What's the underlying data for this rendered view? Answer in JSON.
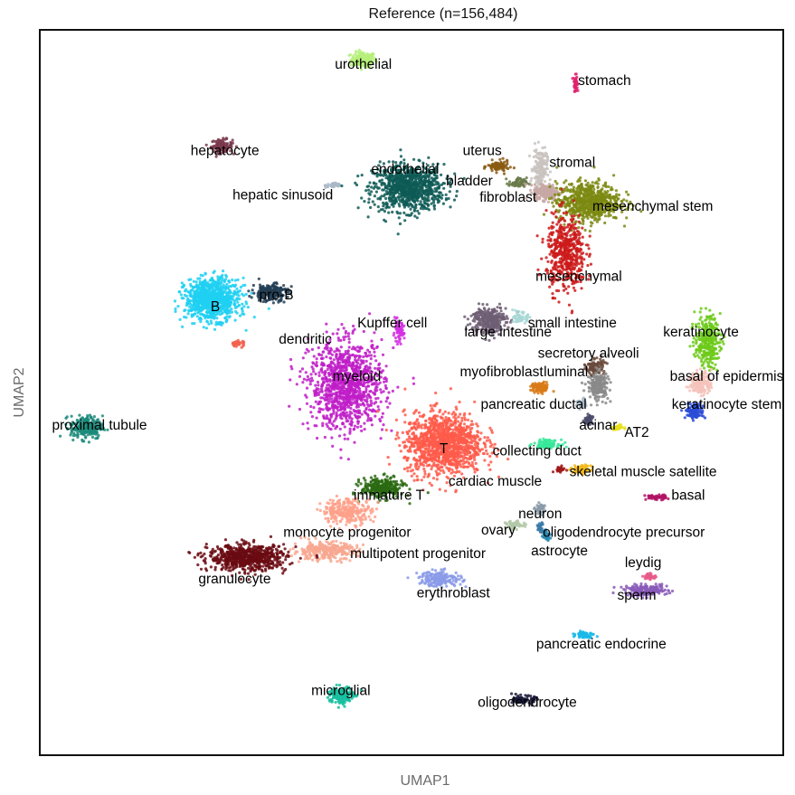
{
  "chart_data": {
    "type": "scatter",
    "title": "Reference (n=156,484)",
    "xlabel": "UMAP1",
    "ylabel": "UMAP2",
    "grid": false,
    "legend": "none",
    "clusters": [
      {
        "name": "urothelial",
        "color": "#b6f07a",
        "center": [
          5.5,
          15.3
        ],
        "spread": [
          0.35,
          0.3
        ],
        "points": 160,
        "label": [
          5.5,
          14.9
        ]
      },
      {
        "name": "stomach",
        "color": "#e0226e",
        "center": [
          12.1,
          14.3
        ],
        "spread": [
          0.05,
          0.3
        ],
        "points": 50,
        "label": [
          13.0,
          14.2
        ]
      },
      {
        "name": "hepatocyte",
        "color": "#7a3a4e",
        "center": [
          1.1,
          11.6
        ],
        "spread": [
          0.3,
          0.25
        ],
        "points": 110,
        "label": [
          1.2,
          11.2
        ]
      },
      {
        "name": "hepatic sinusoid",
        "color": "#a9b8c8",
        "center": [
          4.6,
          9.9
        ],
        "spread": [
          0.25,
          0.1
        ],
        "points": 40,
        "label": [
          3.0,
          9.3
        ]
      },
      {
        "name": "endothelial",
        "color": "#0e5a56",
        "center": [
          6.9,
          9.8
        ],
        "spread": [
          1.0,
          0.9
        ],
        "points": 900,
        "label": [
          6.8,
          10.4
        ]
      },
      {
        "name": "uterus",
        "color": "#8a5a12",
        "center": [
          9.7,
          10.7
        ],
        "spread": [
          0.3,
          0.22
        ],
        "points": 90,
        "label": [
          9.2,
          11.2
        ]
      },
      {
        "name": "stromal",
        "color": "#c9c3bf",
        "center": [
          11.0,
          10.6
        ],
        "spread": [
          0.2,
          0.8
        ],
        "points": 180,
        "label": [
          12.0,
          10.7
        ]
      },
      {
        "name": "bladder",
        "color": "#6a7a4a",
        "center": [
          10.3,
          10.0
        ],
        "spread": [
          0.25,
          0.2
        ],
        "points": 60,
        "label": [
          8.8,
          9.9
        ]
      },
      {
        "name": "fibroblast",
        "color": "#c7a8a5",
        "center": [
          11.2,
          9.6
        ],
        "spread": [
          0.35,
          0.3
        ],
        "points": 220,
        "label": [
          10.0,
          9.2
        ]
      },
      {
        "name": "mesenchymal stem",
        "color": "#7d8a12",
        "center": [
          12.5,
          9.2
        ],
        "spread": [
          0.9,
          0.75
        ],
        "points": 700,
        "label": [
          14.5,
          8.8
        ]
      },
      {
        "name": "mesenchymal",
        "color": "#cc1a1a",
        "center": [
          11.8,
          7.0
        ],
        "spread": [
          0.55,
          1.5
        ],
        "points": 500,
        "label": [
          12.2,
          5.8
        ]
      },
      {
        "name": "B",
        "color": "#1fd0f2",
        "center": [
          0.8,
          5.0
        ],
        "spread": [
          0.75,
          0.8
        ],
        "points": 900,
        "label": [
          0.9,
          4.5
        ]
      },
      {
        "name": "pro-B",
        "color": "#233e55",
        "center": [
          2.6,
          5.3
        ],
        "spread": [
          0.5,
          0.35
        ],
        "points": 200,
        "label": [
          2.8,
          5.0
        ]
      },
      {
        "name": "Kupffer cell",
        "color": "#d530e4",
        "center": [
          6.6,
          3.6
        ],
        "spread": [
          0.15,
          0.4
        ],
        "points": 70,
        "label": [
          6.4,
          3.8
        ]
      },
      {
        "name": "dendritic",
        "color": "#f26350",
        "center": [
          1.6,
          3.1
        ],
        "spread": [
          0.2,
          0.12
        ],
        "points": 40,
        "label": [
          3.7,
          3.1
        ]
      },
      {
        "name": "myeloid",
        "color": "#c01dc8",
        "center": [
          5.0,
          1.3
        ],
        "spread": [
          1.05,
          1.7
        ],
        "points": 1100,
        "label": [
          5.3,
          1.5
        ]
      },
      {
        "name": "large intestine",
        "color": "#6e5e74",
        "center": [
          9.4,
          4.1
        ],
        "spread": [
          0.5,
          0.55
        ],
        "points": 300,
        "label": [
          10.0,
          3.4
        ]
      },
      {
        "name": "small intestine",
        "color": "#a9d7d6",
        "center": [
          10.4,
          4.2
        ],
        "spread": [
          0.2,
          0.2
        ],
        "points": 60,
        "label": [
          12.0,
          3.8
        ]
      },
      {
        "name": "secretory alveoli",
        "color": "#6a4a3c",
        "center": [
          12.7,
          2.1
        ],
        "spread": [
          0.25,
          0.3
        ],
        "points": 110,
        "label": [
          12.5,
          2.5
        ]
      },
      {
        "name": "luminal",
        "color": "#8a8a8a",
        "center": [
          12.8,
          1.3
        ],
        "spread": [
          0.3,
          0.55
        ],
        "points": 200,
        "label": [
          11.8,
          1.7
        ]
      },
      {
        "name": "keratinocyte",
        "color": "#6dca1a",
        "center": [
          16.2,
          3.2
        ],
        "spread": [
          0.35,
          1.0
        ],
        "points": 300,
        "label": [
          16.0,
          3.4
        ]
      },
      {
        "name": "basal of epidermis",
        "color": "#f4c3bb",
        "center": [
          16.0,
          1.4
        ],
        "spread": [
          0.3,
          0.45
        ],
        "points": 160,
        "label": [
          16.8,
          1.5
        ]
      },
      {
        "name": "keratinocyte stem",
        "color": "#2a4bd6",
        "center": [
          15.8,
          0.2
        ],
        "spread": [
          0.25,
          0.3
        ],
        "points": 110,
        "label": [
          16.8,
          0.3
        ]
      },
      {
        "name": "myofibroblast",
        "color": "#d87a16",
        "center": [
          11.0,
          1.2
        ],
        "spread": [
          0.25,
          0.2
        ],
        "points": 90,
        "label": [
          9.8,
          1.7
        ]
      },
      {
        "name": "pancreatic ductal",
        "color": "#a8b8c8",
        "center": [
          12.3,
          0.5
        ],
        "spread": [
          0.15,
          0.2
        ],
        "points": 40,
        "label": [
          10.8,
          0.3
        ]
      },
      {
        "name": "acinar",
        "color": "#4a4c6a",
        "center": [
          12.5,
          -0.2
        ],
        "spread": [
          0.12,
          0.25
        ],
        "points": 40,
        "label": [
          12.8,
          -0.6
        ]
      },
      {
        "name": "AT2",
        "color": "#e8e01a",
        "center": [
          13.4,
          -0.5
        ],
        "spread": [
          0.15,
          0.1
        ],
        "points": 30,
        "label": [
          14.0,
          -0.9
        ]
      },
      {
        "name": "proximal tubule",
        "color": "#1a8a7a",
        "center": [
          -3.1,
          -0.5
        ],
        "spread": [
          0.45,
          0.45
        ],
        "points": 240,
        "label": [
          -2.7,
          -0.6
        ]
      },
      {
        "name": "T",
        "color": "#ff5a4a",
        "center": [
          8.0,
          -1.2
        ],
        "spread": [
          1.1,
          1.2
        ],
        "points": 1200,
        "label": [
          8.0,
          -1.6
        ]
      },
      {
        "name": "collecting duct",
        "color": "#38e89a",
        "center": [
          11.2,
          -1.2
        ],
        "spread": [
          0.35,
          0.15
        ],
        "points": 100,
        "label": [
          10.9,
          -1.7
        ]
      },
      {
        "name": "skeletal muscle satellite",
        "color": "#f2b818",
        "center": [
          12.3,
          -2.3
        ],
        "spread": [
          0.25,
          0.15
        ],
        "points": 80,
        "label": [
          14.2,
          -2.6
        ]
      },
      {
        "name": "cardiac muscle",
        "color": "#a01818",
        "center": [
          11.6,
          -2.3
        ],
        "spread": [
          0.15,
          0.1
        ],
        "points": 30,
        "label": [
          9.6,
          -3.0
        ]
      },
      {
        "name": "immature T",
        "color": "#2a6a12",
        "center": [
          6.1,
          -3.1
        ],
        "spread": [
          0.6,
          0.4
        ],
        "points": 280,
        "label": [
          6.3,
          -3.6
        ]
      },
      {
        "name": "basal",
        "color": "#b21466",
        "center": [
          14.6,
          -3.5
        ],
        "spread": [
          0.3,
          0.1
        ],
        "points": 60,
        "label": [
          15.6,
          -3.6
        ]
      },
      {
        "name": "neuron",
        "color": "#8a9aa8",
        "center": [
          11.0,
          -4.0
        ],
        "spread": [
          0.15,
          0.2
        ],
        "points": 40,
        "label": [
          11.0,
          -4.4
        ]
      },
      {
        "name": "ovary",
        "color": "#b3c8a8",
        "center": [
          10.2,
          -4.7
        ],
        "spread": [
          0.25,
          0.15
        ],
        "points": 50,
        "label": [
          9.7,
          -5.1
        ]
      },
      {
        "name": "oligodendrocyte precursor",
        "color": "#3a7aa8",
        "center": [
          11.0,
          -4.8
        ],
        "spread": [
          0.1,
          0.2
        ],
        "points": 30,
        "label": [
          13.6,
          -5.2
        ]
      },
      {
        "name": "astrocyte",
        "color": "#2a8ab0",
        "center": [
          11.2,
          -5.1
        ],
        "spread": [
          0.1,
          0.2
        ],
        "points": 40,
        "label": [
          11.6,
          -6.0
        ]
      },
      {
        "name": "monocyte progenitor",
        "color": "#ffa08a",
        "center": [
          5.0,
          -4.1
        ],
        "spread": [
          0.7,
          0.5
        ],
        "points": 260,
        "label": [
          5.0,
          -5.2
        ]
      },
      {
        "name": "multipotent progenitor",
        "color": "#f8a890",
        "center": [
          4.3,
          -5.8
        ],
        "spread": [
          0.9,
          0.35
        ],
        "points": 300,
        "label": [
          7.2,
          -6.1
        ]
      },
      {
        "name": "granulocyte",
        "color": "#6a0a12",
        "center": [
          1.9,
          -6.1
        ],
        "spread": [
          1.1,
          0.5
        ],
        "points": 700,
        "label": [
          1.5,
          -7.2
        ]
      },
      {
        "name": "erythroblast",
        "color": "#8a9ae8",
        "center": [
          7.9,
          -7.0
        ],
        "spread": [
          0.6,
          0.3
        ],
        "points": 180,
        "label": [
          8.3,
          -7.8
        ]
      },
      {
        "name": "leydig",
        "color": "#e85a8a",
        "center": [
          14.4,
          -6.9
        ],
        "spread": [
          0.2,
          0.12
        ],
        "points": 40,
        "label": [
          14.2,
          -6.5
        ]
      },
      {
        "name": "sperm",
        "color": "#8a5ab8",
        "center": [
          14.3,
          -7.5
        ],
        "spread": [
          0.6,
          0.2
        ],
        "points": 200,
        "label": [
          14.0,
          -7.9
        ]
      },
      {
        "name": "pancreatic endocrine",
        "color": "#1ab8e8",
        "center": [
          12.4,
          -9.4
        ],
        "spread": [
          0.25,
          0.12
        ],
        "points": 70,
        "label": [
          12.9,
          -10.0
        ]
      },
      {
        "name": "microglial",
        "color": "#18c0a0",
        "center": [
          4.8,
          -12.0
        ],
        "spread": [
          0.35,
          0.35
        ],
        "points": 180,
        "label": [
          4.8,
          -12.0
        ]
      },
      {
        "name": "oligodendrocyte",
        "color": "#1a1a3a",
        "center": [
          10.5,
          -12.2
        ],
        "spread": [
          0.3,
          0.15
        ],
        "points": 90,
        "label": [
          10.6,
          -12.5
        ]
      }
    ],
    "xlim": [
      -4.5,
      18.5
    ],
    "ylim": [
      -14.5,
      16.5
    ]
  }
}
